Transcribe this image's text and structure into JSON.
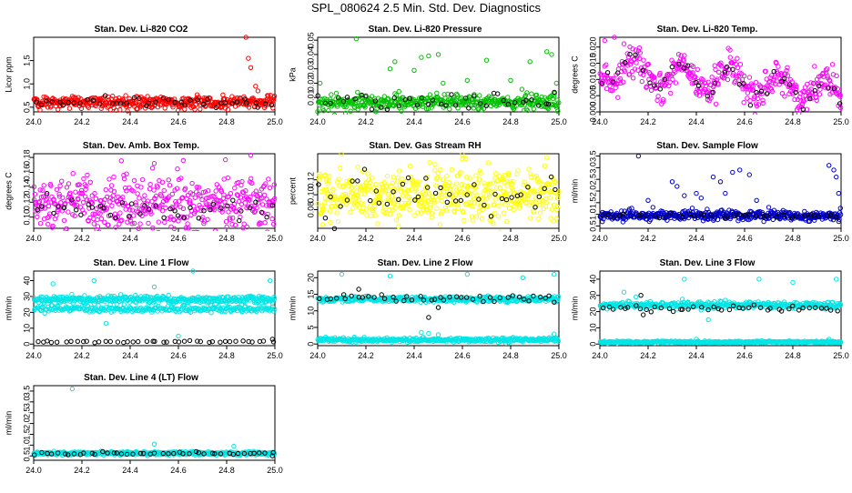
{
  "page": {
    "title": "SPL_080624  2.5 Min. Std. Dev. Diagnostics"
  },
  "chart_data": [
    {
      "type": "scatter",
      "title": "Stan. Dev. Li-820 CO2",
      "ylabel": "Licor ppm",
      "xlim": [
        24.0,
        25.0
      ],
      "xticks": [
        24.0,
        24.2,
        24.4,
        24.6,
        24.8,
        25.0
      ],
      "ylim": [
        0.4,
        2.0
      ],
      "yticks": [
        0.5,
        1.0,
        1.5
      ],
      "series": [
        {
          "color": "#ff0000",
          "base": 0.6,
          "spread": 0.07,
          "count": 420,
          "points": [
            [
              24.88,
              2.0
            ],
            [
              24.89,
              1.55
            ],
            [
              24.9,
              1.35
            ],
            [
              24.92,
              0.95
            ],
            [
              24.93,
              0.85
            ]
          ]
        },
        {
          "color": "#000000",
          "base": 0.6,
          "spread": 0.05,
          "count": 42,
          "points": []
        }
      ]
    },
    {
      "type": "scatter",
      "title": "Stan. Dev. Li-820 Pressure",
      "ylabel": "kPa",
      "xlim": [
        24.0,
        25.0
      ],
      "xticks": [
        24.0,
        24.2,
        24.4,
        24.6,
        24.8,
        25.0
      ],
      "ylim": [
        0.0,
        0.052
      ],
      "yticks": [
        0.01,
        0.02,
        0.03,
        0.04,
        0.05
      ],
      "series": [
        {
          "color": "#00c000",
          "base": 0.007,
          "spread": 0.003,
          "count": 420,
          "points": [
            [
              24.16,
              0.051
            ],
            [
              24.3,
              0.03
            ],
            [
              24.32,
              0.035
            ],
            [
              24.4,
              0.029
            ],
            [
              24.43,
              0.038
            ],
            [
              24.46,
              0.039
            ],
            [
              24.5,
              0.04
            ],
            [
              24.52,
              0.02
            ],
            [
              24.62,
              0.022
            ],
            [
              24.7,
              0.036
            ],
            [
              24.8,
              0.022
            ],
            [
              24.88,
              0.035
            ],
            [
              24.95,
              0.042
            ],
            [
              24.97,
              0.04
            ],
            [
              24.99,
              0.02
            ],
            [
              24.01,
              0.02
            ]
          ]
        },
        {
          "color": "#000000",
          "base": 0.008,
          "spread": 0.003,
          "count": 42,
          "points": []
        }
      ]
    },
    {
      "type": "scatter",
      "title": "Stan. Dev. Li-820 Temp.",
      "ylabel": "degrees C",
      "xlim": [
        24.0,
        25.0
      ],
      "xticks": [
        24.0,
        24.2,
        24.4,
        24.6,
        24.8,
        25.0
      ],
      "ylim": [
        0.0,
        0.023
      ],
      "yticks": [
        0.0,
        0.005,
        0.01,
        0.015,
        0.02
      ],
      "wave": {
        "mean": 0.009,
        "amp": 0.004,
        "period": 0.2,
        "phase": 0.55,
        "trend_start": 0.018,
        "trend_end": 0.002
      },
      "series": [
        {
          "color": "#ff00ff",
          "base": 0.0,
          "spread": 0.0025,
          "count": 420,
          "points": [
            [
              24.02,
              0.022
            ],
            [
              24.06,
              0.023
            ],
            [
              24.1,
              0.021
            ]
          ]
        },
        {
          "color": "#000000",
          "base": 0.0,
          "spread": 0.0015,
          "count": 42,
          "points": []
        }
      ]
    },
    {
      "type": "scatter",
      "title": "Stan. Dev. Amb. Box Temp.",
      "ylabel": "degrees C",
      "xlim": [
        24.0,
        25.0
      ],
      "xticks": [
        24.0,
        24.2,
        24.4,
        24.6,
        24.8,
        25.0
      ],
      "ylim": [
        0.085,
        0.185
      ],
      "yticks": [
        0.1,
        0.12,
        0.14,
        0.16,
        0.18
      ],
      "series": [
        {
          "color": "#ff00ff",
          "base": 0.118,
          "spread": 0.018,
          "count": 460,
          "points": [
            [
              24.9,
              0.183
            ],
            [
              24.5,
              0.172
            ],
            [
              24.62,
              0.176
            ]
          ]
        },
        {
          "color": "#000000",
          "base": 0.112,
          "spread": 0.008,
          "count": 42,
          "points": []
        }
      ]
    },
    {
      "type": "scatter",
      "title": "Stan. Dev. Gas Stream RH",
      "ylabel": "percent",
      "xlim": [
        24.0,
        25.0
      ],
      "xticks": [
        24.0,
        24.2,
        24.4,
        24.6,
        24.8,
        25.0
      ],
      "ylim": [
        0.055,
        0.155
      ],
      "yticks": [
        0.08,
        0.1,
        0.12
      ],
      "series": [
        {
          "color": "#ffff00",
          "base": 0.1,
          "spread": 0.018,
          "count": 520,
          "points": [
            [
              24.02,
              0.06
            ],
            [
              24.95,
              0.15
            ],
            [
              24.6,
              0.148
            ]
          ]
        },
        {
          "color": "#000000",
          "base": 0.1,
          "spread": 0.012,
          "count": 44,
          "points": []
        }
      ]
    },
    {
      "type": "scatter",
      "title": "Stan. Dev. Sample Flow",
      "ylabel": "ml/min",
      "xlim": [
        24.0,
        25.0
      ],
      "xticks": [
        24.0,
        24.2,
        24.4,
        24.6,
        24.8,
        25.0
      ],
      "ylim": [
        0.4,
        3.6
      ],
      "yticks": [
        0.5,
        1.0,
        1.5,
        2.0,
        2.5,
        3.0,
        3.5
      ],
      "series": [
        {
          "color": "#0000cc",
          "base": 0.95,
          "spread": 0.1,
          "count": 460,
          "points": [
            [
              24.16,
              3.5
            ],
            [
              24.2,
              1.6
            ],
            [
              24.22,
              1.3
            ],
            [
              24.3,
              2.4
            ],
            [
              24.32,
              2.2
            ],
            [
              24.35,
              1.8
            ],
            [
              24.4,
              1.9
            ],
            [
              24.42,
              1.7
            ],
            [
              24.47,
              2.6
            ],
            [
              24.5,
              2.4
            ],
            [
              24.52,
              1.9
            ],
            [
              24.55,
              2.8
            ],
            [
              24.58,
              2.9
            ],
            [
              24.62,
              2.7
            ],
            [
              24.65,
              1.6
            ],
            [
              24.7,
              1.3
            ],
            [
              24.95,
              3.1
            ],
            [
              24.97,
              2.9
            ],
            [
              24.98,
              2.6
            ],
            [
              24.99,
              1.9
            ]
          ]
        },
        {
          "color": "#000000",
          "base": 0.95,
          "spread": 0.06,
          "count": 42,
          "points": []
        }
      ]
    },
    {
      "type": "scatter",
      "title": "Stan. Dev. Line 1 Flow",
      "ylabel": "ml/min",
      "xlim": [
        24.0,
        25.0
      ],
      "xticks": [
        24.0,
        24.2,
        24.4,
        24.6,
        24.8,
        25.0
      ],
      "ylim": [
        -1,
        46
      ],
      "yticks": [
        0,
        10,
        20,
        30,
        40
      ],
      "series": [
        {
          "color": "#00e5e5",
          "base": 28,
          "spread": 1.2,
          "count": 380,
          "points": [
            [
              24.08,
              38
            ],
            [
              24.25,
              40
            ],
            [
              24.5,
              36
            ],
            [
              24.66,
              46
            ],
            [
              24.98,
              40
            ],
            [
              24.3,
              13
            ],
            [
              24.48,
              22
            ],
            [
              24.6,
              5
            ]
          ]
        },
        {
          "color": "#00e5e5",
          "base": 22,
          "spread": 1.0,
          "count": 260,
          "points": []
        },
        {
          "color": "#000000",
          "base": 1.5,
          "spread": 0.3,
          "count": 42,
          "points": [
            [
              24.99,
              3
            ]
          ]
        }
      ]
    },
    {
      "type": "scatter",
      "title": "Stan. Dev. Line 2 Flow",
      "ylabel": "ml/min",
      "xlim": [
        24.0,
        25.0
      ],
      "xticks": [
        24.0,
        24.2,
        24.4,
        24.6,
        24.8,
        25.0
      ],
      "ylim": [
        -0.5,
        22
      ],
      "yticks": [
        0,
        5,
        10,
        15,
        20
      ],
      "series": [
        {
          "color": "#00e5e5",
          "base": 13.5,
          "spread": 0.4,
          "count": 380,
          "points": [
            [
              24.1,
              21
            ],
            [
              24.3,
              20.5
            ],
            [
              24.5,
              11
            ],
            [
              24.62,
              21
            ],
            [
              24.85,
              20
            ],
            [
              24.98,
              21
            ]
          ]
        },
        {
          "color": "#00e5e5",
          "base": 1.2,
          "spread": 0.3,
          "count": 380,
          "points": [
            [
              24.43,
              3.5
            ],
            [
              24.46,
              3.2
            ],
            [
              24.5,
              2.8
            ],
            [
              24.98,
              3
            ]
          ]
        },
        {
          "color": "#000000",
          "base": 13.8,
          "spread": 0.5,
          "count": 44,
          "points": [
            [
              24.17,
              16.5
            ],
            [
              24.46,
              8
            ],
            [
              24.5,
              11
            ]
          ]
        }
      ]
    },
    {
      "type": "scatter",
      "title": "Stan. Dev. Line 3 Flow",
      "ylabel": "ml/min",
      "xlim": [
        24.0,
        25.0
      ],
      "xticks": [
        24.0,
        24.2,
        24.4,
        24.6,
        24.8,
        25.0
      ],
      "ylim": [
        -1,
        45
      ],
      "yticks": [
        0,
        10,
        20,
        30,
        40
      ],
      "series": [
        {
          "color": "#00e5e5",
          "base": 24,
          "spread": 1.0,
          "count": 380,
          "points": [
            [
              24.1,
              32
            ],
            [
              24.15,
              29
            ],
            [
              24.35,
              40
            ],
            [
              24.42,
              21
            ],
            [
              24.45,
              15
            ],
            [
              24.52,
              27
            ],
            [
              24.66,
              40
            ],
            [
              24.8,
              38
            ],
            [
              24.98,
              40
            ]
          ]
        },
        {
          "color": "#00e5e5",
          "base": 1.2,
          "spread": 0.3,
          "count": 380,
          "points": [
            [
              24.4,
              3
            ],
            [
              24.95,
              3
            ]
          ]
        },
        {
          "color": "#000000",
          "base": 22,
          "spread": 0.8,
          "count": 44,
          "points": [
            [
              24.17,
              30
            ],
            [
              24.18,
              18
            ]
          ]
        }
      ]
    },
    {
      "type": "scatter",
      "title": "Stan. Dev. Line 4 (LT) Flow",
      "ylabel": "ml/min",
      "xlim": [
        24.0,
        25.0
      ],
      "xticks": [
        24.0,
        24.2,
        24.4,
        24.6,
        24.8,
        25.0
      ],
      "ylim": [
        0.3,
        3.75
      ],
      "yticks": [
        0.5,
        1.0,
        1.5,
        2.0,
        2.5,
        3.0,
        3.5
      ],
      "series": [
        {
          "color": "#00e5e5",
          "base": 0.62,
          "spread": 0.04,
          "count": 420,
          "points": [
            [
              24.16,
              3.6
            ],
            [
              24.5,
              1.05
            ],
            [
              24.83,
              0.95
            ]
          ]
        },
        {
          "color": "#000000",
          "base": 0.62,
          "spread": 0.03,
          "count": 44,
          "points": [
            [
              24.99,
              0.5
            ]
          ]
        }
      ]
    }
  ]
}
